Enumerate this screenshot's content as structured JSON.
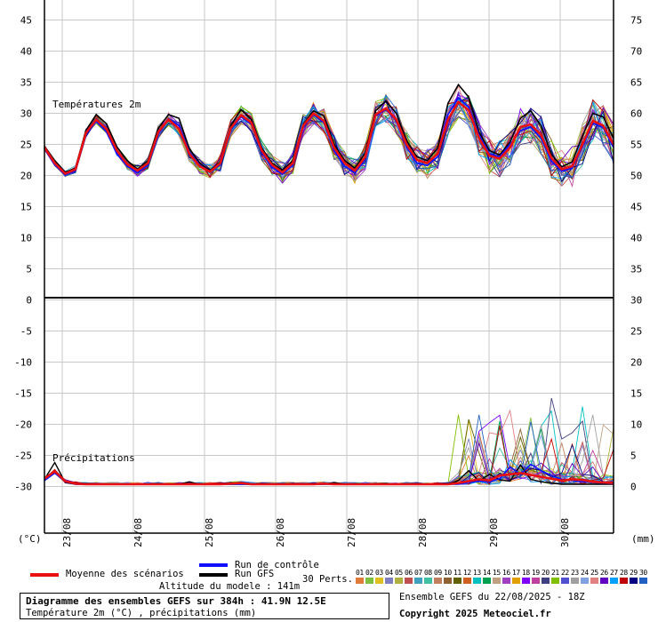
{
  "chart_data": {
    "type": "line",
    "panels": [
      {
        "title": "Températures 2m"
      },
      {
        "title": "Précipitations"
      }
    ],
    "left_axis": {
      "label": "(°C)",
      "ticks": [
        45,
        40,
        35,
        30,
        25,
        20,
        15,
        10,
        5,
        0,
        -5,
        -10,
        -15,
        -20,
        -25,
        -30
      ]
    },
    "right_axis": {
      "label": "(mm)",
      "ticks": [
        75,
        70,
        65,
        60,
        55,
        50,
        45,
        40,
        35,
        30,
        25,
        20,
        15,
        10,
        5,
        0
      ]
    },
    "x_dates": [
      "23/08",
      "24/08",
      "25/08",
      "26/08",
      "27/08",
      "28/08",
      "29/08",
      "30/08"
    ],
    "temp_mean": [
      24.5,
      22,
      20.3,
      21,
      26.8,
      29,
      27.5,
      24,
      21.8,
      20.8,
      22,
      27,
      29,
      27.5,
      23.5,
      21.5,
      20.6,
      22,
      27.6,
      29.7,
      28.5,
      24,
      21.7,
      20.5,
      22,
      28,
      30,
      28.8,
      24.5,
      22,
      20.8,
      23,
      29.8,
      30.8,
      29,
      25,
      22.5,
      22,
      23.5,
      29,
      31.8,
      30.5,
      26,
      23.2,
      22.7,
      24.5,
      27.8,
      28.2,
      26.5,
      22.8,
      21,
      21.5,
      25,
      28.8,
      28,
      25
    ],
    "temp_control": [
      24.3,
      21.7,
      20.1,
      20.8,
      26.6,
      28.7,
      27,
      23.5,
      21.5,
      20.4,
      21.7,
      26.6,
      29.2,
      28,
      23.8,
      21.7,
      20.6,
      21.8,
      27.4,
      29.5,
      28.2,
      23.7,
      21.3,
      20.2,
      21.7,
      27.7,
      29.8,
      28.5,
      24,
      21.5,
      20.4,
      22.6,
      29.6,
      30.6,
      28.8,
      24.6,
      22,
      21.6,
      23,
      29.8,
      32.5,
      31,
      26.5,
      23.5,
      23,
      25,
      27.2,
      27.8,
      26,
      22.3,
      20.7,
      21.2,
      24.6,
      28.4,
      27.7,
      24.5
    ],
    "temp_gfs": [
      24.7,
      22.4,
      20.5,
      21.2,
      27.2,
      29.8,
      28.3,
      24.6,
      22.4,
      21,
      22.4,
      27.6,
      29.8,
      29.2,
      24.3,
      22,
      20.8,
      22.2,
      28,
      30.6,
      29,
      24.4,
      22,
      20.8,
      22.4,
      28.2,
      30.4,
      29.6,
      25,
      22.4,
      21.2,
      23.6,
      30.4,
      32,
      30,
      25.6,
      23,
      22.4,
      24.4,
      31.6,
      34.6,
      32.6,
      27,
      24,
      23.3,
      25.4,
      29.2,
      30.4,
      28,
      23.4,
      21.4,
      22.2,
      26.4,
      30,
      29.4,
      26
    ],
    "precip_mean": [
      0.9,
      2.1,
      0.5,
      0.1,
      0,
      0,
      0,
      0,
      0,
      0,
      0,
      0,
      0,
      0,
      0,
      0,
      0,
      0,
      0.1,
      0.2,
      0,
      0,
      0,
      0,
      0,
      0,
      0,
      0.1,
      0,
      0,
      0,
      0,
      0,
      0,
      0,
      0,
      0,
      0,
      0,
      0,
      0.2,
      0.5,
      0.8,
      0.6,
      1.4,
      1.6,
      1.8,
      1.5,
      1.2,
      0.9,
      0.6,
      0.8,
      0.7,
      0.4,
      0.3,
      0.2
    ],
    "precip_control": [
      0.6,
      1.8,
      0.4,
      0,
      0,
      0,
      0,
      0,
      0,
      0,
      0,
      0,
      0,
      0,
      0,
      0,
      0,
      0,
      0,
      0,
      0,
      0,
      0,
      0,
      0,
      0,
      0,
      0,
      0,
      0,
      0,
      0,
      0,
      0,
      0,
      0,
      0,
      0,
      0,
      0,
      0,
      0.3,
      0.5,
      0.4,
      0.9,
      2.8,
      1.6,
      3.2,
      2.2,
      1.4,
      0.8,
      0.6,
      0.4,
      0.3,
      0.2,
      0.1
    ],
    "precip_gfs": [
      0.8,
      3.5,
      0.3,
      0,
      0,
      0,
      0,
      0,
      0,
      0,
      0,
      0,
      0,
      0,
      0.4,
      0,
      0,
      0,
      0,
      0,
      0,
      0,
      0,
      0,
      0,
      0,
      0,
      0,
      0.3,
      0,
      0,
      0,
      0,
      0,
      0,
      0,
      0,
      0,
      0,
      0,
      0.6,
      2.2,
      0.5,
      1.6,
      0.7,
      0.5,
      3.1,
      0.8,
      0.4,
      0.2,
      0,
      0,
      0,
      0,
      0,
      0
    ]
  },
  "legend": {
    "mean": "Moyenne des scénarios",
    "control": "Run de contrôle",
    "gfs": "Run GFS",
    "altitude": "Altitude du modele : 141m",
    "perts_label": "30 Perts.",
    "pert_numbers": [
      "01",
      "02",
      "03",
      "04",
      "05",
      "06",
      "07",
      "08",
      "09",
      "10",
      "11",
      "12",
      "13",
      "14",
      "15",
      "16",
      "17",
      "18",
      "19",
      "20",
      "21",
      "22",
      "23",
      "24",
      "25",
      "26",
      "27",
      "28",
      "29",
      "30"
    ],
    "pert_colors": [
      "#e07b39",
      "#7fbf3f",
      "#e0c020",
      "#8080c0",
      "#b0b040",
      "#c05050",
      "#3fa0c0",
      "#40c0a0",
      "#c08060",
      "#8f6030",
      "#606000",
      "#d06020",
      "#00c0c0",
      "#00a050",
      "#c0a080",
      "#a040c0",
      "#e0a000",
      "#8000ff",
      "#c040a0",
      "#404080",
      "#80c000",
      "#5050d0",
      "#a0a0a0",
      "#80a0e0",
      "#e08080",
      "#6000c0",
      "#00a0ff",
      "#c00000",
      "#000080",
      "#2060c0"
    ],
    "colors": {
      "mean": "#e81010",
      "control": "#1010ff",
      "gfs": "#000000"
    }
  },
  "info": {
    "title": "Diagramme des ensembles GEFS sur 384h : 41.9N 12.5E",
    "subtitle": "Température 2m (°C) , précipitations (mm)",
    "run": "Ensemble GEFS du 22/08/2025 - 18Z",
    "copyright": "Copyright 2025 Meteociel.fr"
  }
}
